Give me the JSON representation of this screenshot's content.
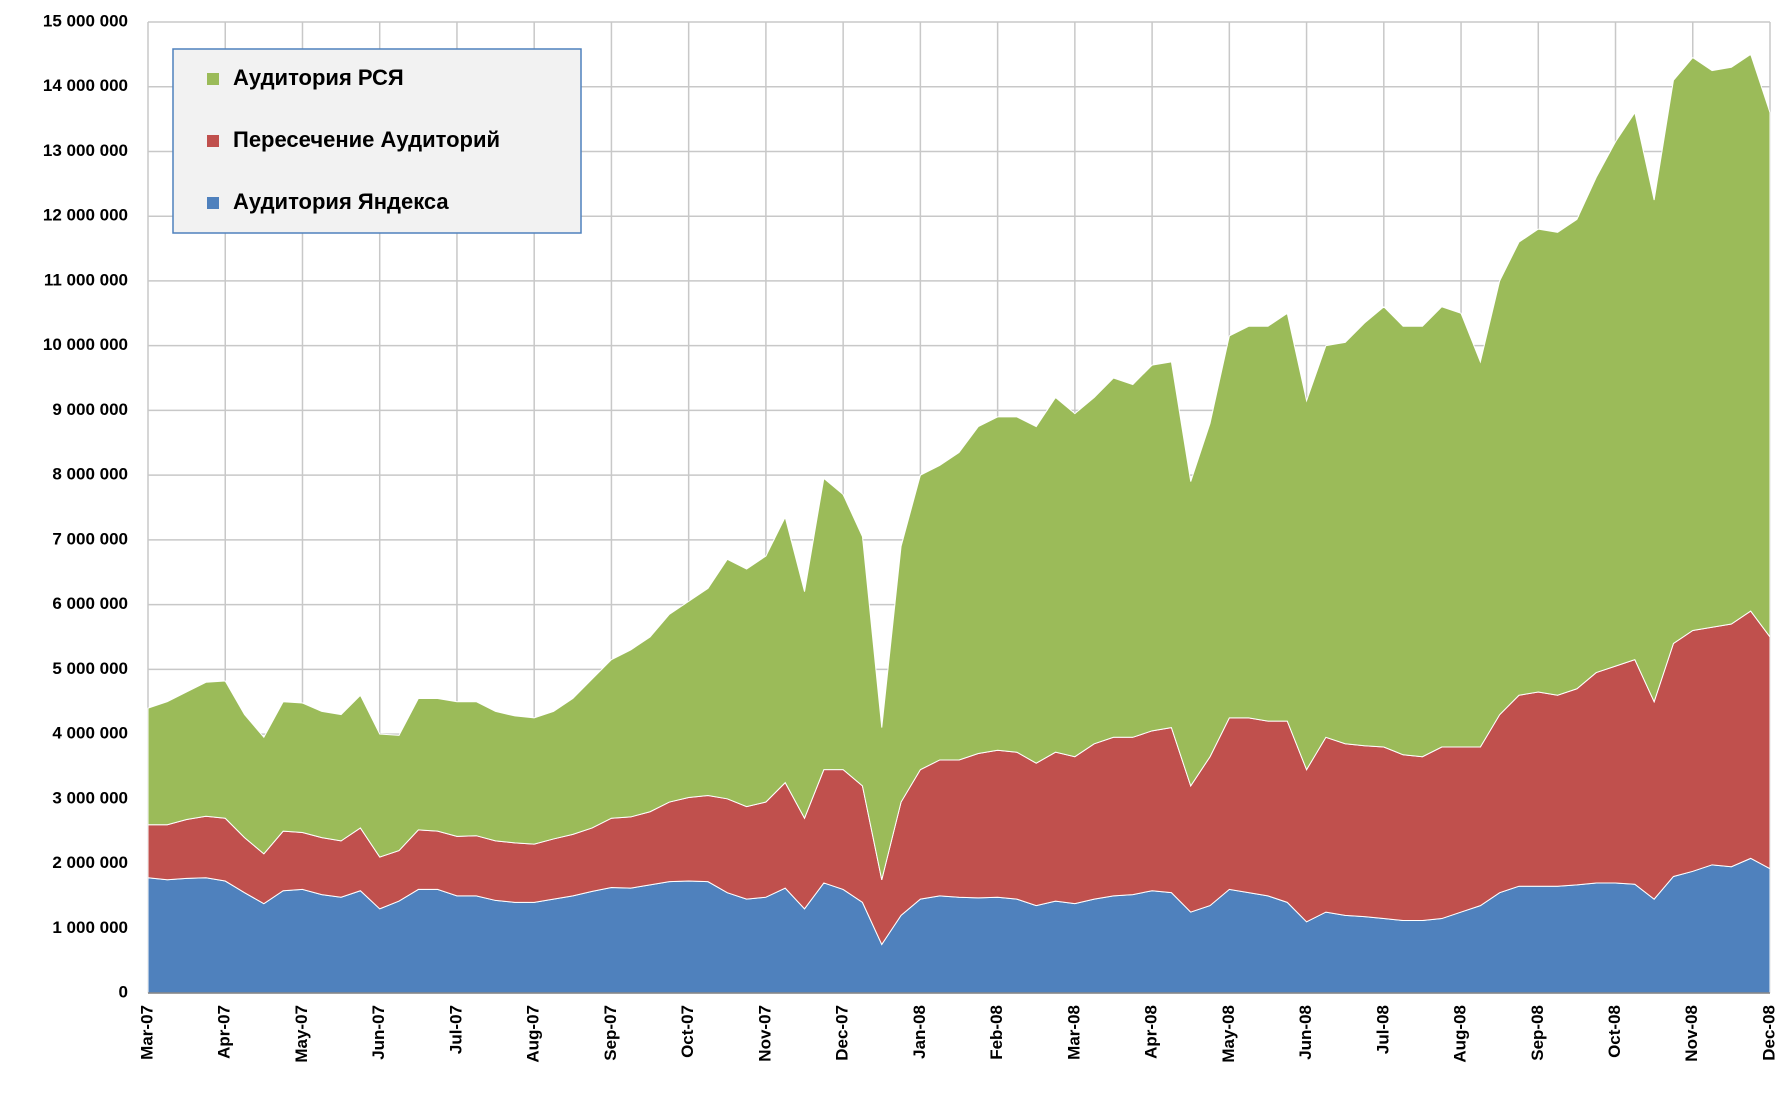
{
  "chart_data": {
    "type": "stacked_area",
    "categories": [
      "Mar-07",
      null,
      null,
      null,
      "Apr-07",
      null,
      null,
      null,
      "May-07",
      null,
      null,
      null,
      "Jun-07",
      null,
      null,
      null,
      "Jul-07",
      null,
      null,
      null,
      "Aug-07",
      null,
      null,
      null,
      "Sep-07",
      null,
      null,
      null,
      "Oct-07",
      null,
      null,
      null,
      "Nov-07",
      null,
      null,
      null,
      "Dec-07",
      null,
      null,
      null,
      "Jan-08",
      null,
      null,
      null,
      "Feb-08",
      null,
      null,
      null,
      "Mar-08",
      null,
      null,
      null,
      "Apr-08",
      null,
      null,
      null,
      "May-08",
      null,
      null,
      null,
      "Jun-08",
      null,
      null,
      null,
      "Jul-08",
      null,
      null,
      null,
      "Aug-08",
      null,
      null,
      null,
      "Sep-08",
      null,
      null,
      null,
      "Oct-08",
      null,
      null,
      null,
      "Nov-08",
      null,
      null,
      null,
      "Dec-08"
    ],
    "series": [
      {
        "name": "Аудитория Яндекса",
        "color": "#4f81bd",
        "values": [
          1780000,
          1750000,
          1770000,
          1780000,
          1730000,
          1550000,
          1380000,
          1580000,
          1600000,
          1520000,
          1480000,
          1580000,
          1300000,
          1420000,
          1600000,
          1600000,
          1500000,
          1500000,
          1430000,
          1400000,
          1400000,
          1450000,
          1500000,
          1570000,
          1630000,
          1620000,
          1670000,
          1720000,
          1730000,
          1720000,
          1550000,
          1450000,
          1480000,
          1620000,
          1300000,
          1700000,
          1600000,
          1400000,
          750000,
          1200000,
          1450000,
          1500000,
          1480000,
          1470000,
          1480000,
          1450000,
          1350000,
          1420000,
          1380000,
          1450000,
          1500000,
          1520000,
          1580000,
          1550000,
          1250000,
          1350000,
          1600000,
          1550000,
          1500000,
          1400000,
          1100000,
          1250000,
          1200000,
          1180000,
          1150000,
          1120000,
          1120000,
          1150000,
          1250000,
          1350000,
          1550000,
          1650000,
          1650000,
          1650000,
          1670000,
          1700000,
          1700000,
          1680000,
          1450000,
          1800000,
          1880000,
          1980000,
          1950000,
          2080000,
          1920000
        ]
      },
      {
        "name": "Пересечение Аудиторий",
        "color": "#c0504d",
        "values": [
          820000,
          850000,
          910000,
          950000,
          970000,
          850000,
          770000,
          920000,
          880000,
          880000,
          870000,
          970000,
          800000,
          780000,
          920000,
          900000,
          920000,
          930000,
          920000,
          920000,
          900000,
          930000,
          950000,
          980000,
          1070000,
          1100000,
          1130000,
          1230000,
          1290000,
          1330000,
          1450000,
          1430000,
          1470000,
          1630000,
          1400000,
          1750000,
          1850000,
          1800000,
          1000000,
          1750000,
          2000000,
          2100000,
          2120000,
          2230000,
          2270000,
          2270000,
          2200000,
          2300000,
          2270000,
          2400000,
          2450000,
          2430000,
          2470000,
          2550000,
          1950000,
          2300000,
          2650000,
          2700000,
          2700000,
          2800000,
          2350000,
          2700000,
          2650000,
          2640000,
          2650000,
          2560000,
          2530000,
          2650000,
          2550000,
          2450000,
          2750000,
          2950000,
          3000000,
          2950000,
          3030000,
          3250000,
          3350000,
          3470000,
          3050000,
          3600000,
          3720000,
          3670000,
          3750000,
          3820000,
          3580000
        ]
      },
      {
        "name": "Аудитория РСЯ",
        "color": "#9bbb59",
        "values": [
          1800000,
          1900000,
          1970000,
          2070000,
          2120000,
          1900000,
          1800000,
          2000000,
          2000000,
          1950000,
          1950000,
          2050000,
          1900000,
          1780000,
          2030000,
          2050000,
          2080000,
          2070000,
          2000000,
          1960000,
          1950000,
          1970000,
          2100000,
          2300000,
          2450000,
          2580000,
          2700000,
          2900000,
          3030000,
          3200000,
          3700000,
          3670000,
          3800000,
          4100000,
          3500000,
          4500000,
          4250000,
          3850000,
          2350000,
          3950000,
          4550000,
          4550000,
          4750000,
          5050000,
          5150000,
          5180000,
          5200000,
          5480000,
          5300000,
          5350000,
          5550000,
          5450000,
          5650000,
          5650000,
          4700000,
          5150000,
          5900000,
          6050000,
          6100000,
          6300000,
          5700000,
          6050000,
          6200000,
          6530000,
          6800000,
          6620000,
          6650000,
          6800000,
          6700000,
          5950000,
          6700000,
          7000000,
          7150000,
          7150000,
          7250000,
          7650000,
          8100000,
          8450000,
          7750000,
          8700000,
          8850000,
          8600000,
          8600000,
          8600000,
          8100000
        ]
      }
    ],
    "ylim": [
      0,
      15000000
    ],
    "yticks": [
      0,
      {
        "value": 1000000,
        "label": "1 000 000"
      },
      {
        "value": 2000000,
        "label": "2 000 000"
      },
      {
        "value": 3000000,
        "label": "3 000 000"
      },
      {
        "value": 4000000,
        "label": "4 000 000"
      },
      {
        "value": 5000000,
        "label": "5 000 000"
      },
      {
        "value": 6000000,
        "label": "6 000 000"
      },
      {
        "value": 7000000,
        "label": "7 000 000"
      },
      {
        "value": 8000000,
        "label": "8 000 000"
      },
      {
        "value": 9000000,
        "label": "9 000 000"
      },
      {
        "value": 10000000,
        "label": "10 000 000"
      },
      {
        "value": 11000000,
        "label": "11 000 000"
      },
      {
        "value": 12000000,
        "label": "12 000 000"
      },
      {
        "value": 13000000,
        "label": "13 000 000"
      },
      {
        "value": 14000000,
        "label": "14 000 000"
      },
      {
        "value": 15000000,
        "label": "15 000 000"
      }
    ],
    "grid": true,
    "legend": "upper left"
  }
}
